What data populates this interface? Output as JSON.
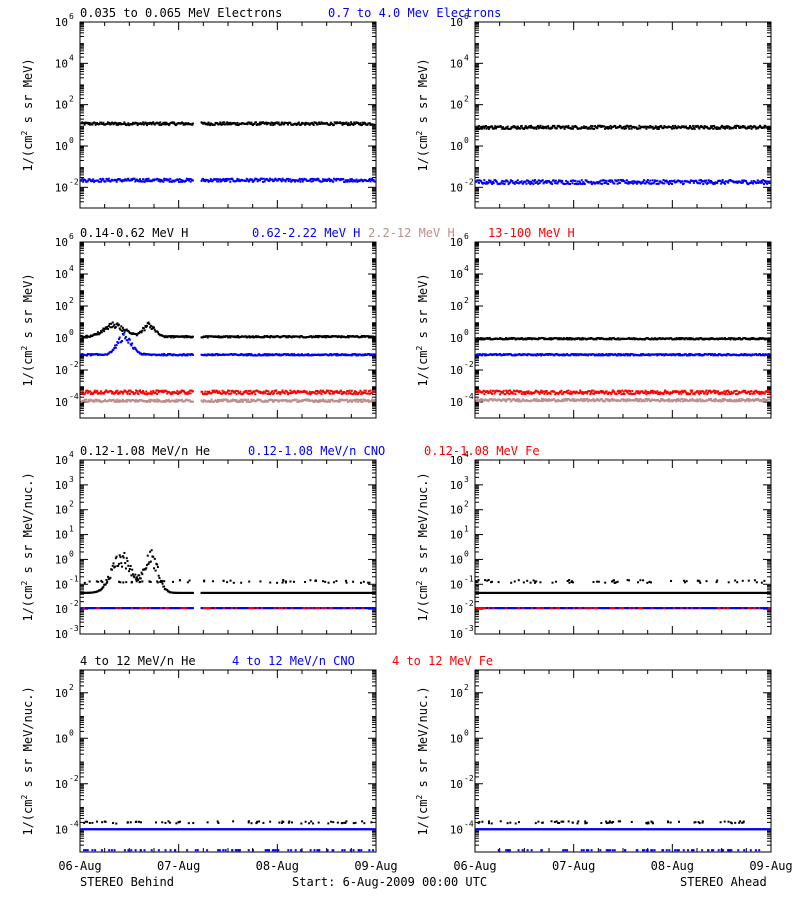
{
  "colors": {
    "black": "#000000",
    "blue": "#0000ff",
    "tan": "#bc8f8f",
    "red": "#ff0000"
  },
  "row_titles": [
    [
      {
        "text": "0.035 to 0.065 MeV Electrons",
        "color": "black"
      },
      {
        "text": "0.7 to 4.0 Mev Electrons",
        "color": "blue"
      }
    ],
    [
      {
        "text": "0.14-0.62 MeV H",
        "color": "black"
      },
      {
        "text": "0.62-2.22 MeV H",
        "color": "blue"
      },
      {
        "text": "2.2-12 MeV H",
        "color": "tan"
      },
      {
        "text": "13-100 MeV H",
        "color": "red"
      }
    ],
    [
      {
        "text": "0.12-1.08 MeV/n He",
        "color": "black"
      },
      {
        "text": "0.12-1.08 MeV/n CNO",
        "color": "blue"
      },
      {
        "text": "0.12-1.08 MeV Fe",
        "color": "red"
      }
    ],
    [
      {
        "text": "4 to 12 MeV/n He",
        "color": "black"
      },
      {
        "text": "4 to 12 MeV/n CNO",
        "color": "blue"
      },
      {
        "text": "4 to 12 MeV Fe",
        "color": "red"
      }
    ]
  ],
  "footer": {
    "left": "STEREO Behind",
    "center": "Start:  6-Aug-2009 00:00 UTC",
    "right": "STEREO Ahead"
  },
  "x_tick_labels": [
    "06-Aug",
    "07-Aug",
    "08-Aug",
    "09-Aug"
  ],
  "chart_data": [
    {
      "type": "scatter",
      "panel": "row1-behind",
      "yscale": "log",
      "xlim": [
        "2009-08-06",
        "2009-08-09"
      ],
      "ylim": [
        0.001,
        1000000
      ],
      "ylabel_base": "1/(cm",
      "ylabel_sup": "2",
      "ylabel_rest": " s sr MeV)",
      "yticks": [
        {
          "base": "10",
          "exp": "6"
        },
        {
          "base": "10",
          "exp": "4"
        },
        {
          "base": "10",
          "exp": "2"
        },
        {
          "base": "10",
          "exp": "0"
        },
        {
          "base": "10",
          "exp": "-2"
        }
      ],
      "gap": [
        1.15,
        1.23
      ],
      "series": [
        {
          "color": "black",
          "level": 12,
          "scatter": 0.07
        },
        {
          "color": "blue",
          "level": 0.022,
          "scatter": 0.08
        }
      ]
    },
    {
      "type": "scatter",
      "panel": "row1-ahead",
      "yscale": "log",
      "xlim": [
        "2009-08-06",
        "2009-08-09"
      ],
      "ylim": [
        0.001,
        1000000
      ],
      "ylabel_base": "1/(cm",
      "ylabel_sup": "2",
      "ylabel_rest": " s sr MeV)",
      "yticks": [
        {
          "base": "10",
          "exp": "6"
        },
        {
          "base": "10",
          "exp": "4"
        },
        {
          "base": "10",
          "exp": "2"
        },
        {
          "base": "10",
          "exp": "0"
        },
        {
          "base": "10",
          "exp": "-2"
        }
      ],
      "series": [
        {
          "color": "black",
          "level": 8,
          "scatter": 0.08
        },
        {
          "color": "blue",
          "level": 0.018,
          "scatter": 0.1
        }
      ]
    },
    {
      "type": "scatter",
      "panel": "row2-behind",
      "yscale": "log",
      "xlim": [
        "2009-08-06",
        "2009-08-09"
      ],
      "ylim": [
        1e-05,
        1000000
      ],
      "ylabel_base": "1/(cm",
      "ylabel_sup": "2",
      "ylabel_rest": " s sr MeV)",
      "yticks": [
        {
          "base": "10",
          "exp": "6"
        },
        {
          "base": "10",
          "exp": "4"
        },
        {
          "base": "10",
          "exp": "2"
        },
        {
          "base": "10",
          "exp": "0"
        },
        {
          "base": "10",
          "exp": "-2"
        },
        {
          "base": "10",
          "exp": "-4"
        }
      ],
      "gap": [
        1.15,
        1.23
      ],
      "series": [
        {
          "color": "black",
          "level": 1.2,
          "scatter": 0.05,
          "bumps": [
            [
              0.35,
              0.15,
              8
            ],
            [
              0.7,
              0.08,
              10
            ]
          ]
        },
        {
          "color": "blue",
          "level": 0.09,
          "scatter": 0.05,
          "bumps": [
            [
              0.45,
              0.1,
              2
            ]
          ]
        },
        {
          "color": "red",
          "level": 0.0004,
          "scatter": 0.12
        },
        {
          "color": "tan",
          "level": 0.00012,
          "scatter": 0.08
        }
      ]
    },
    {
      "type": "scatter",
      "panel": "row2-ahead",
      "yscale": "log",
      "xlim": [
        "2009-08-06",
        "2009-08-09"
      ],
      "ylim": [
        1e-05,
        1000000
      ],
      "ylabel_base": "1/(cm",
      "ylabel_sup": "2",
      "ylabel_rest": " s sr MeV)",
      "yticks": [
        {
          "base": "10",
          "exp": "6"
        },
        {
          "base": "10",
          "exp": "4"
        },
        {
          "base": "10",
          "exp": "2"
        },
        {
          "base": "10",
          "exp": "0"
        },
        {
          "base": "10",
          "exp": "-2"
        },
        {
          "base": "10",
          "exp": "-4"
        }
      ],
      "series": [
        {
          "color": "black",
          "level": 0.9,
          "scatter": 0.05
        },
        {
          "color": "blue",
          "level": 0.09,
          "scatter": 0.05
        },
        {
          "color": "red",
          "level": 0.0004,
          "scatter": 0.12
        },
        {
          "color": "tan",
          "level": 0.00013,
          "scatter": 0.08
        }
      ]
    },
    {
      "type": "scatter",
      "panel": "row3-behind",
      "yscale": "log",
      "xlim": [
        "2009-08-06",
        "2009-08-09"
      ],
      "ylim": [
        0.001,
        10000
      ],
      "ylabel_base": "1/(cm",
      "ylabel_sup": "2",
      "ylabel_rest": " s sr MeV/nuc.)",
      "yticks": [
        {
          "base": "10",
          "exp": "4"
        },
        {
          "base": "10",
          "exp": "3"
        },
        {
          "base": "10",
          "exp": "2"
        },
        {
          "base": "10",
          "exp": "1"
        },
        {
          "base": "10",
          "exp": "0"
        },
        {
          "base": "10",
          "exp": "-1"
        },
        {
          "base": "10",
          "exp": "-2"
        },
        {
          "base": "10",
          "exp": "-3"
        }
      ],
      "gap": [
        1.15,
        1.23
      ],
      "series": [
        {
          "color": "black",
          "level": 0.045,
          "scatter": 0.0,
          "bumps": [
            [
              0.42,
              0.14,
              2.2
            ],
            [
              0.72,
              0.1,
              2.4
            ]
          ]
        },
        {
          "color": "black",
          "level": 0.13,
          "scatter": 0.06,
          "sparse": true
        },
        {
          "color": "blue",
          "level": 0.011,
          "scatter": 0.0
        },
        {
          "color": "red",
          "level": 0.011,
          "scatter": 0.0,
          "sparse": true
        }
      ]
    },
    {
      "type": "scatter",
      "panel": "row3-ahead",
      "yscale": "log",
      "xlim": [
        "2009-08-06",
        "2009-08-09"
      ],
      "ylim": [
        0.001,
        10000
      ],
      "ylabel_base": "1/(cm",
      "ylabel_sup": "2",
      "ylabel_rest": " s sr MeV/nuc.)",
      "yticks": [
        {
          "base": "10",
          "exp": "4"
        },
        {
          "base": "10",
          "exp": "3"
        },
        {
          "base": "10",
          "exp": "2"
        },
        {
          "base": "10",
          "exp": "1"
        },
        {
          "base": "10",
          "exp": "0"
        },
        {
          "base": "10",
          "exp": "-1"
        },
        {
          "base": "10",
          "exp": "-2"
        },
        {
          "base": "10",
          "exp": "-3"
        }
      ],
      "series": [
        {
          "color": "black",
          "level": 0.045,
          "scatter": 0.0
        },
        {
          "color": "black",
          "level": 0.13,
          "scatter": 0.06,
          "sparse": true
        },
        {
          "color": "blue",
          "level": 0.011,
          "scatter": 0.0
        },
        {
          "color": "red",
          "level": 0.011,
          "scatter": 0.0,
          "sparse": true
        }
      ]
    },
    {
      "type": "scatter",
      "panel": "row4-behind",
      "yscale": "log",
      "xlim": [
        "2009-08-06",
        "2009-08-09"
      ],
      "ylim": [
        1e-05,
        1000
      ],
      "ylabel_base": "1/(cm",
      "ylabel_sup": "2",
      "ylabel_rest": " s sr MeV/nuc.)",
      "yticks": [
        {
          "base": "10",
          "exp": "2"
        },
        {
          "base": "10",
          "exp": "0"
        },
        {
          "base": "10",
          "exp": "-2"
        },
        {
          "base": "10",
          "exp": "-4"
        }
      ],
      "series": [
        {
          "color": "blue",
          "level": 0.0001,
          "scatter": 0.0
        },
        {
          "color": "black",
          "level": 0.0002,
          "scatter": 0.05,
          "sparse": true
        },
        {
          "color": "blue",
          "level": 1.2e-05,
          "scatter": 0.0,
          "sparse": true
        }
      ]
    },
    {
      "type": "scatter",
      "panel": "row4-ahead",
      "yscale": "log",
      "xlim": [
        "2009-08-06",
        "2009-08-09"
      ],
      "ylim": [
        1e-05,
        1000
      ],
      "ylabel_base": "1/(cm",
      "ylabel_sup": "2",
      "ylabel_rest": " s sr MeV/nuc.)",
      "yticks": [
        {
          "base": "10",
          "exp": "2"
        },
        {
          "base": "10",
          "exp": "0"
        },
        {
          "base": "10",
          "exp": "-2"
        },
        {
          "base": "10",
          "exp": "-4"
        }
      ],
      "series": [
        {
          "color": "blue",
          "level": 0.0001,
          "scatter": 0.0
        },
        {
          "color": "black",
          "level": 0.0002,
          "scatter": 0.05,
          "sparse": true
        },
        {
          "color": "blue",
          "level": 1.2e-05,
          "scatter": 0.0,
          "sparse": true
        }
      ]
    }
  ]
}
